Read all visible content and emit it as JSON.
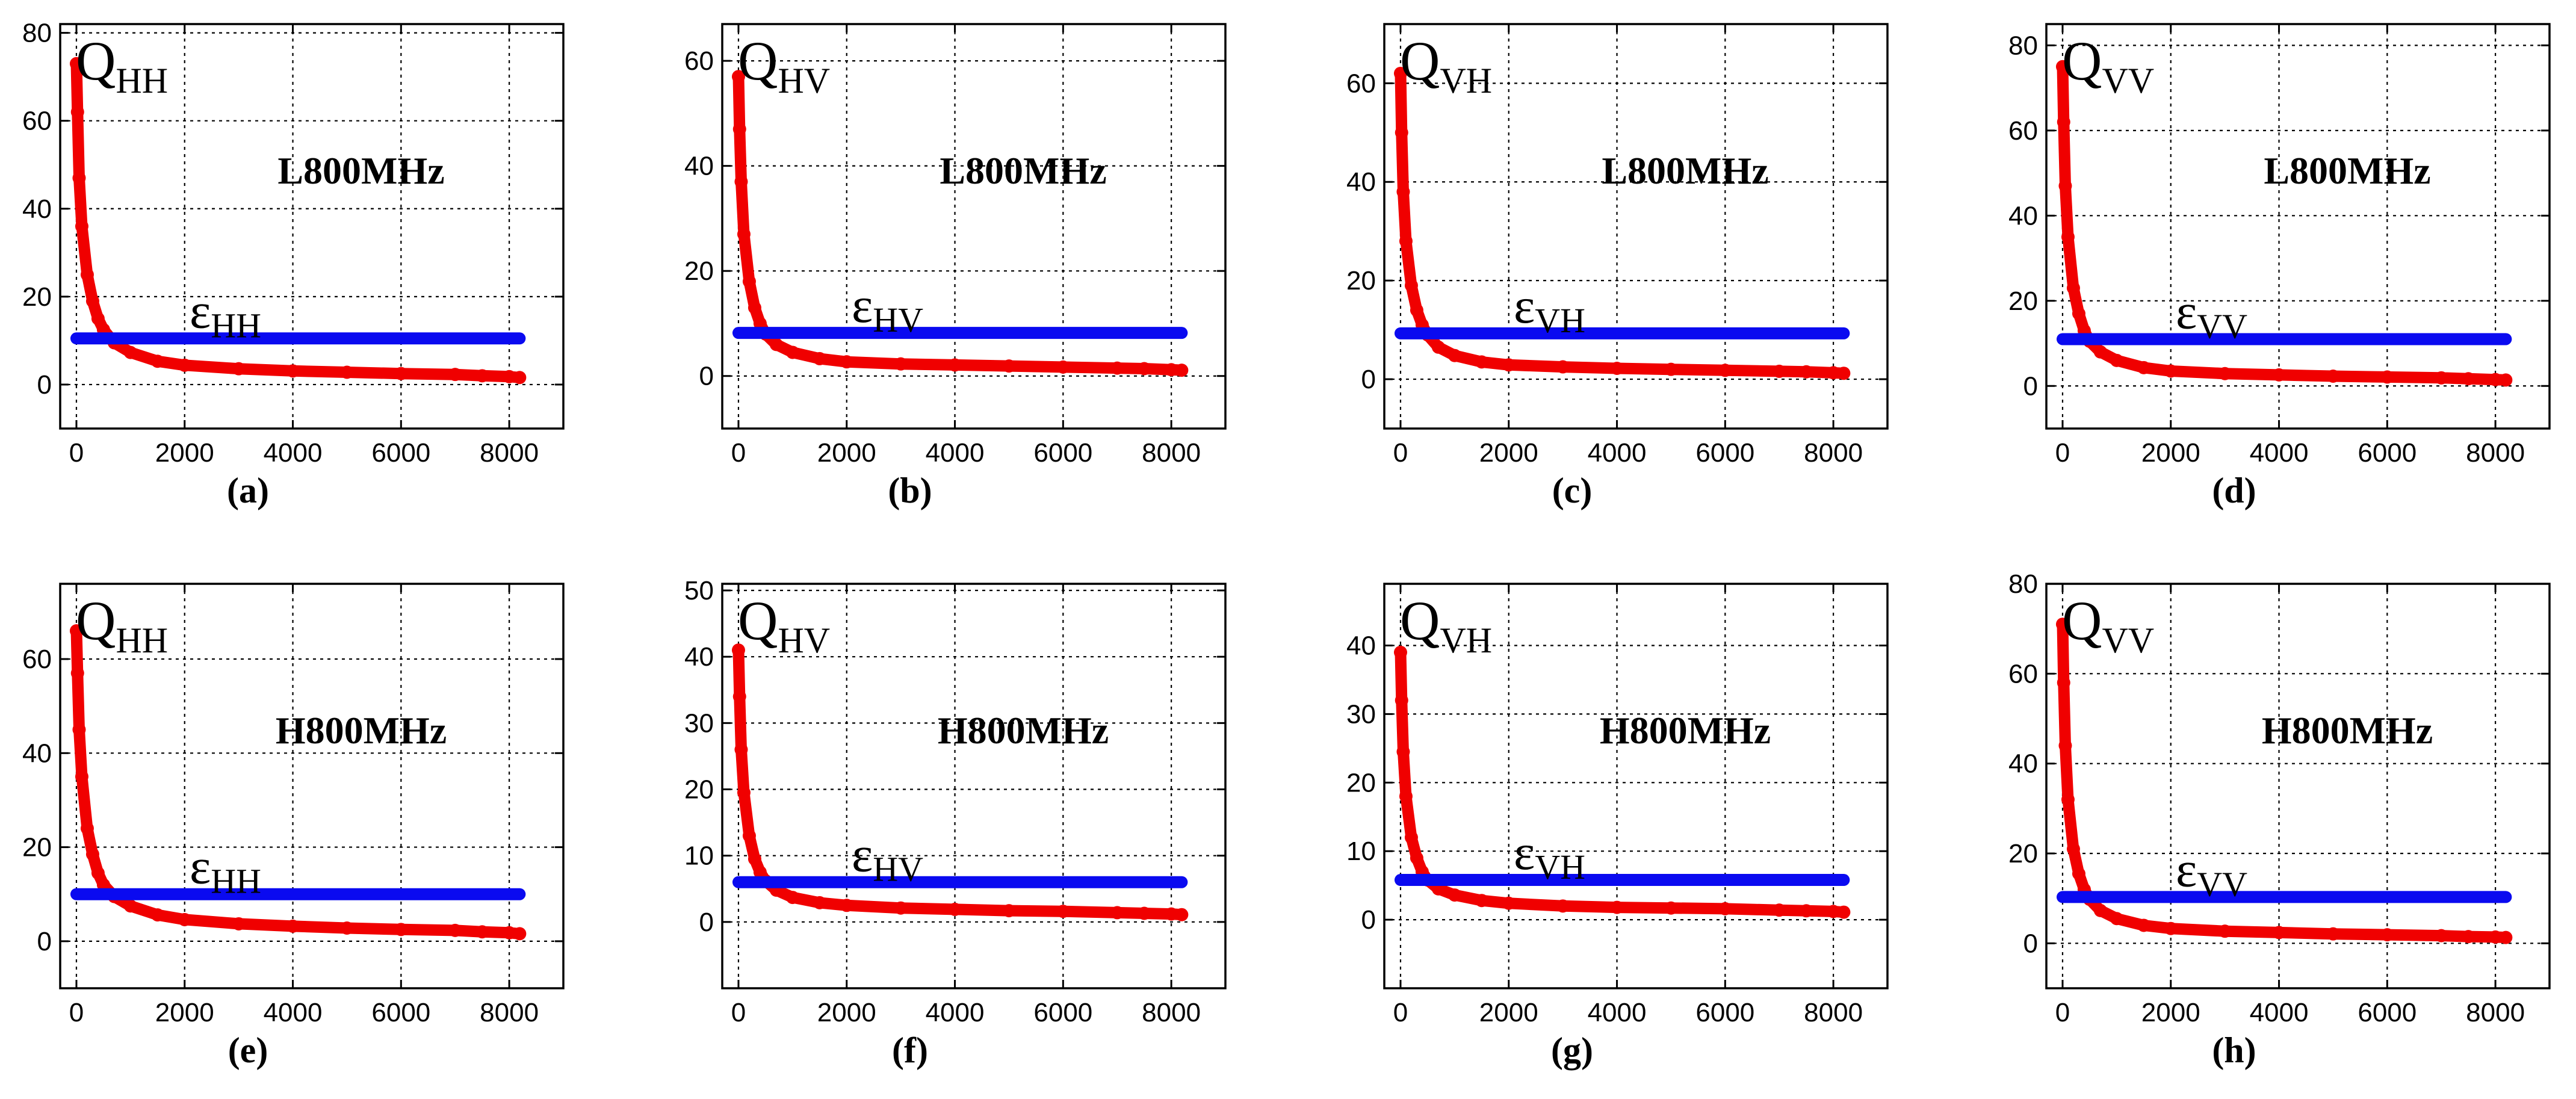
{
  "chart_data": [
    {
      "type": "line",
      "panel_label": "(a)",
      "annotation": "L800MHz",
      "q_label": {
        "base": "Q",
        "sub": "HH"
      },
      "eps_label": {
        "base": "ε",
        "sub": "HH"
      },
      "xlim": [
        -300,
        9000
      ],
      "ylim": [
        -10,
        82
      ],
      "xticks": [
        0,
        2000,
        4000,
        6000,
        8000
      ],
      "yticks": [
        0,
        20,
        40,
        60,
        80
      ],
      "grid": true,
      "threshold": 10.5,
      "series": [
        {
          "name": "Q",
          "x": [
            0,
            20,
            50,
            100,
            200,
            300,
            400,
            500,
            700,
            1000,
            1500,
            2000,
            3000,
            4000,
            5000,
            6000,
            7000,
            7500,
            8000,
            8192
          ],
          "y": [
            73,
            62,
            47,
            36,
            25,
            19,
            15,
            12.5,
            9.5,
            7.3,
            5.3,
            4.4,
            3.6,
            3.1,
            2.8,
            2.5,
            2.3,
            2.0,
            1.8,
            1.6
          ]
        },
        {
          "name": "ε",
          "x": [
            0,
            8192
          ],
          "y": [
            10.5,
            10.5
          ]
        }
      ]
    },
    {
      "type": "line",
      "panel_label": "(b)",
      "annotation": "L800MHz",
      "q_label": {
        "base": "Q",
        "sub": "HV"
      },
      "eps_label": {
        "base": "ε",
        "sub": "HV"
      },
      "xlim": [
        -300,
        9000
      ],
      "ylim": [
        -10,
        67
      ],
      "xticks": [
        0,
        2000,
        4000,
        6000,
        8000
      ],
      "yticks": [
        0,
        20,
        40,
        60
      ],
      "grid": true,
      "threshold": 8.2,
      "series": [
        {
          "name": "Q",
          "x": [
            0,
            20,
            50,
            100,
            200,
            300,
            400,
            500,
            700,
            1000,
            1500,
            2000,
            3000,
            4000,
            5000,
            6000,
            7000,
            7500,
            8000,
            8192
          ],
          "y": [
            57,
            47,
            37,
            27,
            18,
            13,
            10,
            8,
            6,
            4.5,
            3.3,
            2.7,
            2.3,
            2.1,
            1.9,
            1.7,
            1.5,
            1.4,
            1.2,
            1.1
          ]
        },
        {
          "name": "ε",
          "x": [
            0,
            8192
          ],
          "y": [
            8.2,
            8.2
          ]
        }
      ]
    },
    {
      "type": "line",
      "panel_label": "(c)",
      "annotation": "L800MHz",
      "q_label": {
        "base": "Q",
        "sub": "VH"
      },
      "eps_label": {
        "base": "ε",
        "sub": "VH"
      },
      "xlim": [
        -300,
        9000
      ],
      "ylim": [
        -10,
        72
      ],
      "xticks": [
        0,
        2000,
        4000,
        6000,
        8000
      ],
      "yticks": [
        0,
        20,
        40,
        60
      ],
      "grid": true,
      "threshold": 9.3,
      "series": [
        {
          "name": "Q",
          "x": [
            0,
            20,
            50,
            100,
            200,
            300,
            400,
            500,
            700,
            1000,
            1500,
            2000,
            3000,
            4000,
            5000,
            6000,
            7000,
            7500,
            8000,
            8192
          ],
          "y": [
            62,
            50,
            38,
            28,
            19,
            14,
            11,
            9,
            6.5,
            4.8,
            3.5,
            2.9,
            2.5,
            2.2,
            2.0,
            1.8,
            1.6,
            1.5,
            1.3,
            1.2
          ]
        },
        {
          "name": "ε",
          "x": [
            0,
            8192
          ],
          "y": [
            9.3,
            9.3
          ]
        }
      ]
    },
    {
      "type": "line",
      "panel_label": "(d)",
      "annotation": "L800MHz",
      "q_label": {
        "base": "Q",
        "sub": "VV"
      },
      "eps_label": {
        "base": "ε",
        "sub": "VV"
      },
      "xlim": [
        -300,
        9000
      ],
      "ylim": [
        -10,
        85
      ],
      "xticks": [
        0,
        2000,
        4000,
        6000,
        8000
      ],
      "yticks": [
        0,
        20,
        40,
        60,
        80
      ],
      "grid": true,
      "threshold": 11,
      "series": [
        {
          "name": "Q",
          "x": [
            0,
            20,
            50,
            100,
            200,
            300,
            400,
            500,
            700,
            1000,
            1500,
            2000,
            3000,
            4000,
            5000,
            6000,
            7000,
            7500,
            8000,
            8192
          ],
          "y": [
            75,
            62,
            47,
            35,
            23,
            17,
            13,
            10.5,
            8,
            6,
            4.3,
            3.5,
            2.9,
            2.6,
            2.3,
            2.1,
            1.9,
            1.7,
            1.5,
            1.4
          ]
        },
        {
          "name": "ε",
          "x": [
            0,
            8192
          ],
          "y": [
            11,
            11
          ]
        }
      ]
    },
    {
      "type": "line",
      "panel_label": "(e)",
      "annotation": "H800MHz",
      "q_label": {
        "base": "Q",
        "sub": "HH"
      },
      "eps_label": {
        "base": "ε",
        "sub": "HH"
      },
      "xlim": [
        -300,
        9000
      ],
      "ylim": [
        -10,
        76
      ],
      "xticks": [
        0,
        2000,
        4000,
        6000,
        8000
      ],
      "yticks": [
        0,
        20,
        40,
        60
      ],
      "grid": true,
      "threshold": 10,
      "series": [
        {
          "name": "Q",
          "x": [
            0,
            20,
            50,
            100,
            200,
            300,
            400,
            500,
            700,
            1000,
            1500,
            2000,
            3000,
            4000,
            5000,
            6000,
            7000,
            7500,
            8000,
            8192
          ],
          "y": [
            66,
            57,
            45,
            35,
            24,
            18.5,
            14.5,
            12,
            9.5,
            7.5,
            5.6,
            4.6,
            3.7,
            3.2,
            2.8,
            2.5,
            2.3,
            2.0,
            1.8,
            1.6
          ]
        },
        {
          "name": "ε",
          "x": [
            0,
            8192
          ],
          "y": [
            10,
            10
          ]
        }
      ]
    },
    {
      "type": "line",
      "panel_label": "(f)",
      "annotation": "H800MHz",
      "q_label": {
        "base": "Q",
        "sub": "HV"
      },
      "eps_label": {
        "base": "ε",
        "sub": "HV"
      },
      "xlim": [
        -300,
        9000
      ],
      "ylim": [
        -10,
        51
      ],
      "xticks": [
        0,
        2000,
        4000,
        6000,
        8000
      ],
      "yticks": [
        0,
        10,
        20,
        30,
        40,
        50
      ],
      "grid": true,
      "threshold": 6,
      "series": [
        {
          "name": "Q",
          "x": [
            0,
            20,
            50,
            100,
            200,
            300,
            400,
            500,
            700,
            1000,
            1500,
            2000,
            3000,
            4000,
            5000,
            6000,
            7000,
            7500,
            8000,
            8192
          ],
          "y": [
            41,
            34,
            26,
            19.5,
            13,
            9.5,
            7.5,
            6.2,
            4.8,
            3.7,
            2.9,
            2.5,
            2.1,
            1.9,
            1.7,
            1.6,
            1.4,
            1.3,
            1.2,
            1.1
          ]
        },
        {
          "name": "ε",
          "x": [
            0,
            8192
          ],
          "y": [
            6,
            6
          ]
        }
      ]
    },
    {
      "type": "line",
      "panel_label": "(g)",
      "annotation": "H800MHz",
      "q_label": {
        "base": "Q",
        "sub": "VH"
      },
      "eps_label": {
        "base": "ε",
        "sub": "VH"
      },
      "xlim": [
        -300,
        9000
      ],
      "ylim": [
        -10,
        49
      ],
      "xticks": [
        0,
        2000,
        4000,
        6000,
        8000
      ],
      "yticks": [
        0,
        10,
        20,
        30,
        40
      ],
      "grid": true,
      "threshold": 5.8,
      "series": [
        {
          "name": "Q",
          "x": [
            0,
            20,
            50,
            100,
            200,
            300,
            400,
            500,
            700,
            1000,
            1500,
            2000,
            3000,
            4000,
            5000,
            6000,
            7000,
            7500,
            8000,
            8192
          ],
          "y": [
            39,
            32,
            24.5,
            18,
            12,
            9,
            7,
            5.8,
            4.5,
            3.6,
            2.8,
            2.4,
            2.0,
            1.8,
            1.7,
            1.6,
            1.4,
            1.3,
            1.2,
            1.1
          ]
        },
        {
          "name": "ε",
          "x": [
            0,
            8192
          ],
          "y": [
            5.8,
            5.8
          ]
        }
      ]
    },
    {
      "type": "line",
      "panel_label": "(h)",
      "annotation": "H800MHz",
      "q_label": {
        "base": "Q",
        "sub": "VV"
      },
      "eps_label": {
        "base": "ε",
        "sub": "VV"
      },
      "xlim": [
        -300,
        9000
      ],
      "ylim": [
        -10,
        80
      ],
      "xticks": [
        0,
        2000,
        4000,
        6000,
        8000
      ],
      "yticks": [
        0,
        20,
        40,
        60,
        80
      ],
      "grid": true,
      "threshold": 10.3,
      "series": [
        {
          "name": "Q",
          "x": [
            0,
            20,
            50,
            100,
            200,
            300,
            400,
            500,
            700,
            1000,
            1500,
            2000,
            3000,
            4000,
            5000,
            6000,
            7000,
            7500,
            8000,
            8192
          ],
          "y": [
            71,
            58,
            44,
            32,
            21,
            15.5,
            12,
            9.8,
            7.3,
            5.5,
            4.0,
            3.3,
            2.7,
            2.4,
            2.1,
            1.9,
            1.7,
            1.5,
            1.4,
            1.3
          ]
        },
        {
          "name": "ε",
          "x": [
            0,
            8192
          ],
          "y": [
            10.3,
            10.3
          ]
        }
      ]
    }
  ]
}
